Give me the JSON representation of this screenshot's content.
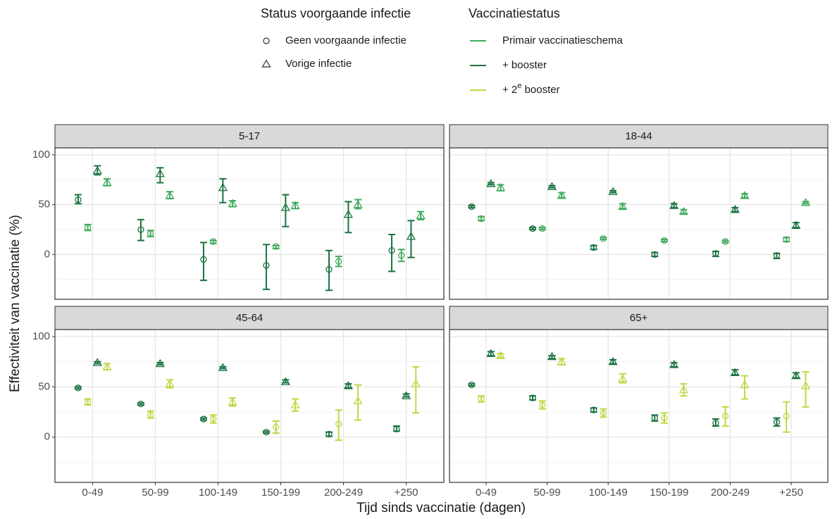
{
  "chart_data": {
    "type": "errorbar",
    "x_label": "Tijd sinds vaccinatie (dagen)",
    "y_label": "Effectiviteit van vaccinatie (%)",
    "shape_legend": {
      "title": "Status voorgaande infectie",
      "entries": [
        {
          "label": "Geen voorgaande infectie",
          "shape": "circle"
        },
        {
          "label": "Vorige infectie",
          "shape": "triangle"
        }
      ]
    },
    "color_legend": {
      "title": "Vaccinatiestatus",
      "entries": [
        {
          "label": "Primair vaccinatieschema",
          "color": "#41ab5d"
        },
        {
          "label": "+ booster",
          "color": "#1a7340"
        },
        {
          "label": "+ 2",
          "superscript": "e",
          "label_after": " booster",
          "color": "#bfd844"
        }
      ]
    },
    "categories": [
      "0-49",
      "50-99",
      "100-149",
      "150-199",
      "200-249",
      "+250"
    ],
    "ylim": [
      -45,
      107
    ],
    "yticks": [
      0,
      50,
      100
    ],
    "minor_gridlines": [
      -25,
      25,
      75
    ],
    "grid": true,
    "facets": [
      {
        "title": "5-17",
        "series": [
          {
            "color": "#1a7340",
            "shape": "circle",
            "values": [
              55,
              25,
              -5,
              -11,
              -15,
              4
            ],
            "lower": [
              51,
              14,
              -26,
              -35,
              -36,
              -17
            ],
            "upper": [
              60,
              35,
              12,
              10,
              4,
              20
            ]
          },
          {
            "color": "#41ab5d",
            "shape": "circle",
            "values": [
              27,
              21,
              13,
              8,
              -7,
              -1
            ],
            "lower": [
              24,
              18,
              11,
              6,
              -12,
              -7
            ],
            "upper": [
              30,
              24,
              14,
              9,
              -2,
              5
            ]
          },
          {
            "color": "#1a7340",
            "shape": "triangle",
            "values": [
              84,
              81,
              67,
              47,
              40,
              18
            ],
            "lower": [
              80,
              72,
              52,
              28,
              22,
              -3
            ],
            "upper": [
              89,
              87,
              76,
              60,
              53,
              34
            ]
          },
          {
            "color": "#41ab5d",
            "shape": "triangle",
            "values": [
              72,
              59,
              51,
              49,
              50,
              39
            ],
            "lower": [
              69,
              56,
              48,
              46,
              46,
              35
            ],
            "upper": [
              76,
              63,
              54,
              52,
              55,
              43
            ]
          }
        ]
      },
      {
        "title": "18-44",
        "series": [
          {
            "color": "#1a7340",
            "shape": "circle",
            "values": [
              48,
              26,
              7,
              0,
              1,
              -1
            ],
            "lower": [
              47,
              25,
              5,
              -2,
              -2,
              -4
            ],
            "upper": [
              49,
              27,
              9,
              2,
              3,
              1
            ]
          },
          {
            "color": "#41ab5d",
            "shape": "circle",
            "values": [
              36,
              26,
              16,
              14,
              13,
              15
            ],
            "lower": [
              34,
              25,
              15,
              13,
              12,
              13
            ],
            "upper": [
              38,
              27,
              17,
              15,
              14,
              17
            ]
          },
          {
            "color": "#1a7340",
            "shape": "triangle",
            "values": [
              71,
              68,
              63,
              49,
              45,
              29
            ],
            "lower": [
              70,
              67,
              62,
              47,
              43,
              27
            ],
            "upper": [
              72,
              69,
              64,
              51,
              47,
              32
            ]
          },
          {
            "color": "#41ab5d",
            "shape": "triangle",
            "values": [
              67,
              59,
              48,
              43,
              59,
              52
            ],
            "lower": [
              64,
              57,
              46,
              41,
              57,
              51
            ],
            "upper": [
              70,
              62,
              51,
              45,
              61,
              53
            ]
          }
        ]
      },
      {
        "title": "45-64",
        "series": [
          {
            "color": "#1a7340",
            "shape": "circle",
            "values": [
              49,
              33,
              18,
              5,
              3,
              8
            ],
            "lower": [
              48,
              32,
              17,
              4,
              1,
              6
            ],
            "upper": [
              50,
              34,
              19,
              6,
              5,
              11
            ]
          },
          {
            "color": "#bfd844",
            "shape": "circle",
            "values": [
              35,
              22,
              18,
              10,
              13,
              null
            ],
            "lower": [
              32,
              19,
              14,
              4,
              -3,
              null
            ],
            "upper": [
              38,
              26,
              22,
              16,
              27,
              null
            ]
          },
          {
            "color": "#1a7340",
            "shape": "triangle",
            "values": [
              74,
              73,
              69,
              55,
              51,
              41
            ],
            "lower": [
              73,
              72,
              68,
              54,
              49,
              40
            ],
            "upper": [
              75,
              74,
              70,
              57,
              53,
              43
            ]
          },
          {
            "color": "#bfd844",
            "shape": "triangle",
            "values": [
              70,
              53,
              35,
              32,
              36,
              53
            ],
            "lower": [
              67,
              49,
              31,
              26,
              17,
              24
            ],
            "upper": [
              73,
              57,
              39,
              38,
              52,
              70
            ]
          }
        ]
      },
      {
        "title": "65+",
        "series": [
          {
            "color": "#1a7340",
            "shape": "circle",
            "values": [
              52,
              39,
              27,
              19,
              14,
              15
            ],
            "lower": [
              51,
              37,
              25,
              16,
              11,
              11
            ],
            "upper": [
              53,
              41,
              29,
              22,
              18,
              19
            ]
          },
          {
            "color": "#bfd844",
            "shape": "circle",
            "values": [
              38,
              32,
              24,
              19,
              21,
              21
            ],
            "lower": [
              35,
              28,
              20,
              14,
              11,
              5
            ],
            "upper": [
              41,
              36,
              28,
              24,
              30,
              35
            ]
          },
          {
            "color": "#1a7340",
            "shape": "triangle",
            "values": [
              83,
              80,
              75,
              72,
              64,
              61
            ],
            "lower": [
              81,
              78,
              73,
              70,
              62,
              59
            ],
            "upper": [
              85,
              81,
              77,
              74,
              67,
              64
            ]
          },
          {
            "color": "#bfd844",
            "shape": "triangle",
            "values": [
              81,
              75,
              58,
              47,
              52,
              51
            ],
            "lower": [
              79,
              72,
              54,
              41,
              38,
              30
            ],
            "upper": [
              83,
              78,
              63,
              53,
              61,
              65
            ]
          }
        ]
      }
    ]
  }
}
